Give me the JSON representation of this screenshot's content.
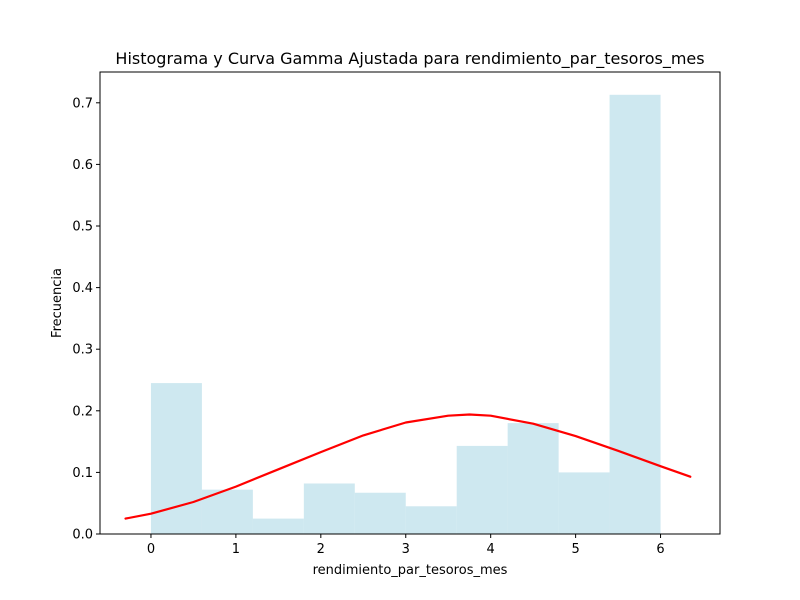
{
  "chart_data": {
    "type": "bar",
    "title": "Histograma y Curva Gamma Ajustada para rendimiento_par_tesoros_mes",
    "xlabel": "rendimiento_par_tesoros_mes",
    "ylabel": "Frecuencia",
    "xlim": [
      -0.6,
      6.7
    ],
    "ylim": [
      0,
      0.75
    ],
    "xticks": [
      "0",
      "1",
      "2",
      "3",
      "4",
      "5",
      "6"
    ],
    "yticks": [
      "0.0",
      "0.1",
      "0.2",
      "0.3",
      "0.4",
      "0.5",
      "0.6",
      "0.7"
    ],
    "grid": false,
    "bar_color": "#add8e6",
    "bar_opacity": 0.6,
    "histogram": {
      "bin_edges": [
        0,
        0.6,
        1.2,
        1.8,
        2.4,
        3.0,
        3.6,
        4.2,
        4.8,
        5.4,
        6.0
      ],
      "values": [
        0.245,
        0.072,
        0.025,
        0.082,
        0.067,
        0.045,
        0.143,
        0.18,
        0.1,
        0.713
      ]
    },
    "curve": {
      "color": "#ff0000",
      "x": [
        -0.3,
        0.0,
        0.5,
        1.0,
        1.5,
        2.0,
        2.5,
        3.0,
        3.5,
        3.75,
        4.0,
        4.5,
        5.0,
        5.5,
        6.0,
        6.35
      ],
      "y": [
        0.025,
        0.033,
        0.052,
        0.077,
        0.105,
        0.133,
        0.16,
        0.181,
        0.192,
        0.194,
        0.192,
        0.179,
        0.159,
        0.135,
        0.11,
        0.093
      ]
    }
  }
}
